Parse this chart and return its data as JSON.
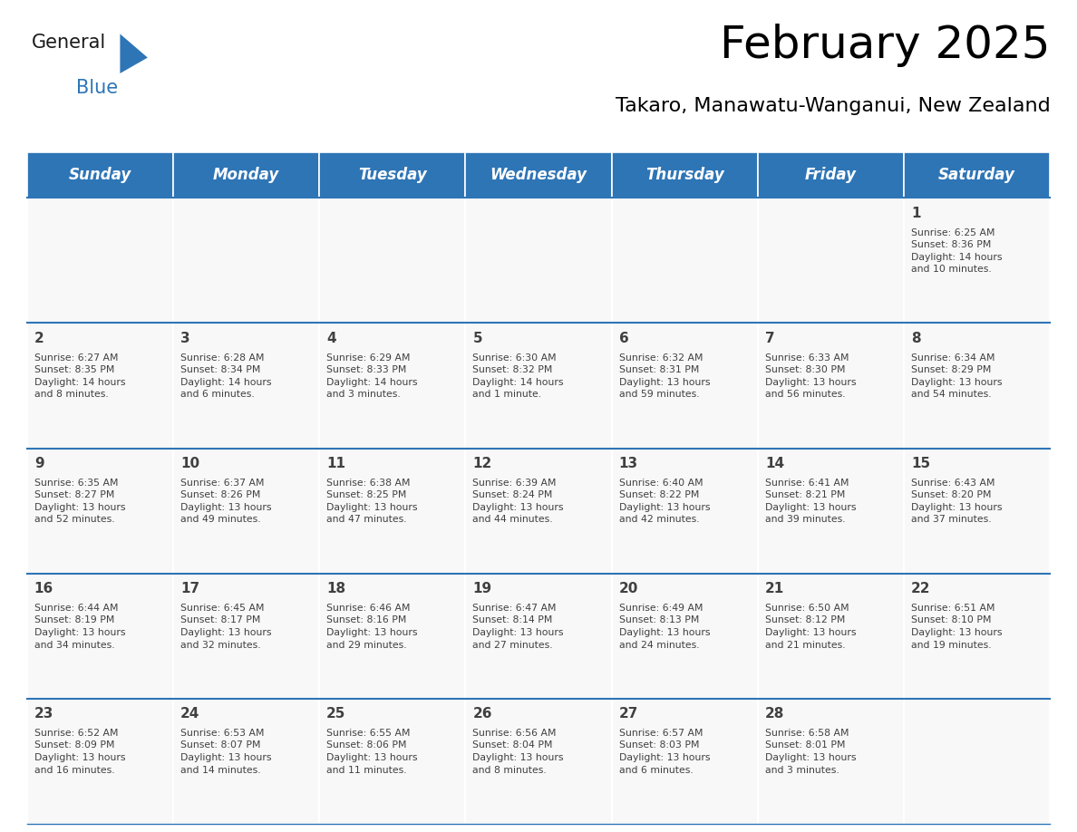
{
  "title": "February 2025",
  "subtitle": "Takaro, Manawatu-Wanganui, New Zealand",
  "days_of_week": [
    "Sunday",
    "Monday",
    "Tuesday",
    "Wednesday",
    "Thursday",
    "Friday",
    "Saturday"
  ],
  "header_bg": "#2E75B6",
  "header_text": "#FFFFFF",
  "cell_bg": "#F8F8F8",
  "border_color": "#2E75B6",
  "text_color": "#404040",
  "title_color": "#000000",
  "logo_general_color": "#1a1a1a",
  "logo_blue_color": "#2E75B6",
  "calendar_data": [
    [
      null,
      null,
      null,
      null,
      null,
      null,
      1
    ],
    [
      2,
      3,
      4,
      5,
      6,
      7,
      8
    ],
    [
      9,
      10,
      11,
      12,
      13,
      14,
      15
    ],
    [
      16,
      17,
      18,
      19,
      20,
      21,
      22
    ],
    [
      23,
      24,
      25,
      26,
      27,
      28,
      null
    ]
  ],
  "sunrise_data": {
    "1": "Sunrise: 6:25 AM\nSunset: 8:36 PM\nDaylight: 14 hours\nand 10 minutes.",
    "2": "Sunrise: 6:27 AM\nSunset: 8:35 PM\nDaylight: 14 hours\nand 8 minutes.",
    "3": "Sunrise: 6:28 AM\nSunset: 8:34 PM\nDaylight: 14 hours\nand 6 minutes.",
    "4": "Sunrise: 6:29 AM\nSunset: 8:33 PM\nDaylight: 14 hours\nand 3 minutes.",
    "5": "Sunrise: 6:30 AM\nSunset: 8:32 PM\nDaylight: 14 hours\nand 1 minute.",
    "6": "Sunrise: 6:32 AM\nSunset: 8:31 PM\nDaylight: 13 hours\nand 59 minutes.",
    "7": "Sunrise: 6:33 AM\nSunset: 8:30 PM\nDaylight: 13 hours\nand 56 minutes.",
    "8": "Sunrise: 6:34 AM\nSunset: 8:29 PM\nDaylight: 13 hours\nand 54 minutes.",
    "9": "Sunrise: 6:35 AM\nSunset: 8:27 PM\nDaylight: 13 hours\nand 52 minutes.",
    "10": "Sunrise: 6:37 AM\nSunset: 8:26 PM\nDaylight: 13 hours\nand 49 minutes.",
    "11": "Sunrise: 6:38 AM\nSunset: 8:25 PM\nDaylight: 13 hours\nand 47 minutes.",
    "12": "Sunrise: 6:39 AM\nSunset: 8:24 PM\nDaylight: 13 hours\nand 44 minutes.",
    "13": "Sunrise: 6:40 AM\nSunset: 8:22 PM\nDaylight: 13 hours\nand 42 minutes.",
    "14": "Sunrise: 6:41 AM\nSunset: 8:21 PM\nDaylight: 13 hours\nand 39 minutes.",
    "15": "Sunrise: 6:43 AM\nSunset: 8:20 PM\nDaylight: 13 hours\nand 37 minutes.",
    "16": "Sunrise: 6:44 AM\nSunset: 8:19 PM\nDaylight: 13 hours\nand 34 minutes.",
    "17": "Sunrise: 6:45 AM\nSunset: 8:17 PM\nDaylight: 13 hours\nand 32 minutes.",
    "18": "Sunrise: 6:46 AM\nSunset: 8:16 PM\nDaylight: 13 hours\nand 29 minutes.",
    "19": "Sunrise: 6:47 AM\nSunset: 8:14 PM\nDaylight: 13 hours\nand 27 minutes.",
    "20": "Sunrise: 6:49 AM\nSunset: 8:13 PM\nDaylight: 13 hours\nand 24 minutes.",
    "21": "Sunrise: 6:50 AM\nSunset: 8:12 PM\nDaylight: 13 hours\nand 21 minutes.",
    "22": "Sunrise: 6:51 AM\nSunset: 8:10 PM\nDaylight: 13 hours\nand 19 minutes.",
    "23": "Sunrise: 6:52 AM\nSunset: 8:09 PM\nDaylight: 13 hours\nand 16 minutes.",
    "24": "Sunrise: 6:53 AM\nSunset: 8:07 PM\nDaylight: 13 hours\nand 14 minutes.",
    "25": "Sunrise: 6:55 AM\nSunset: 8:06 PM\nDaylight: 13 hours\nand 11 minutes.",
    "26": "Sunrise: 6:56 AM\nSunset: 8:04 PM\nDaylight: 13 hours\nand 8 minutes.",
    "27": "Sunrise: 6:57 AM\nSunset: 8:03 PM\nDaylight: 13 hours\nand 6 minutes.",
    "28": "Sunrise: 6:58 AM\nSunset: 8:01 PM\nDaylight: 13 hours\nand 3 minutes."
  }
}
